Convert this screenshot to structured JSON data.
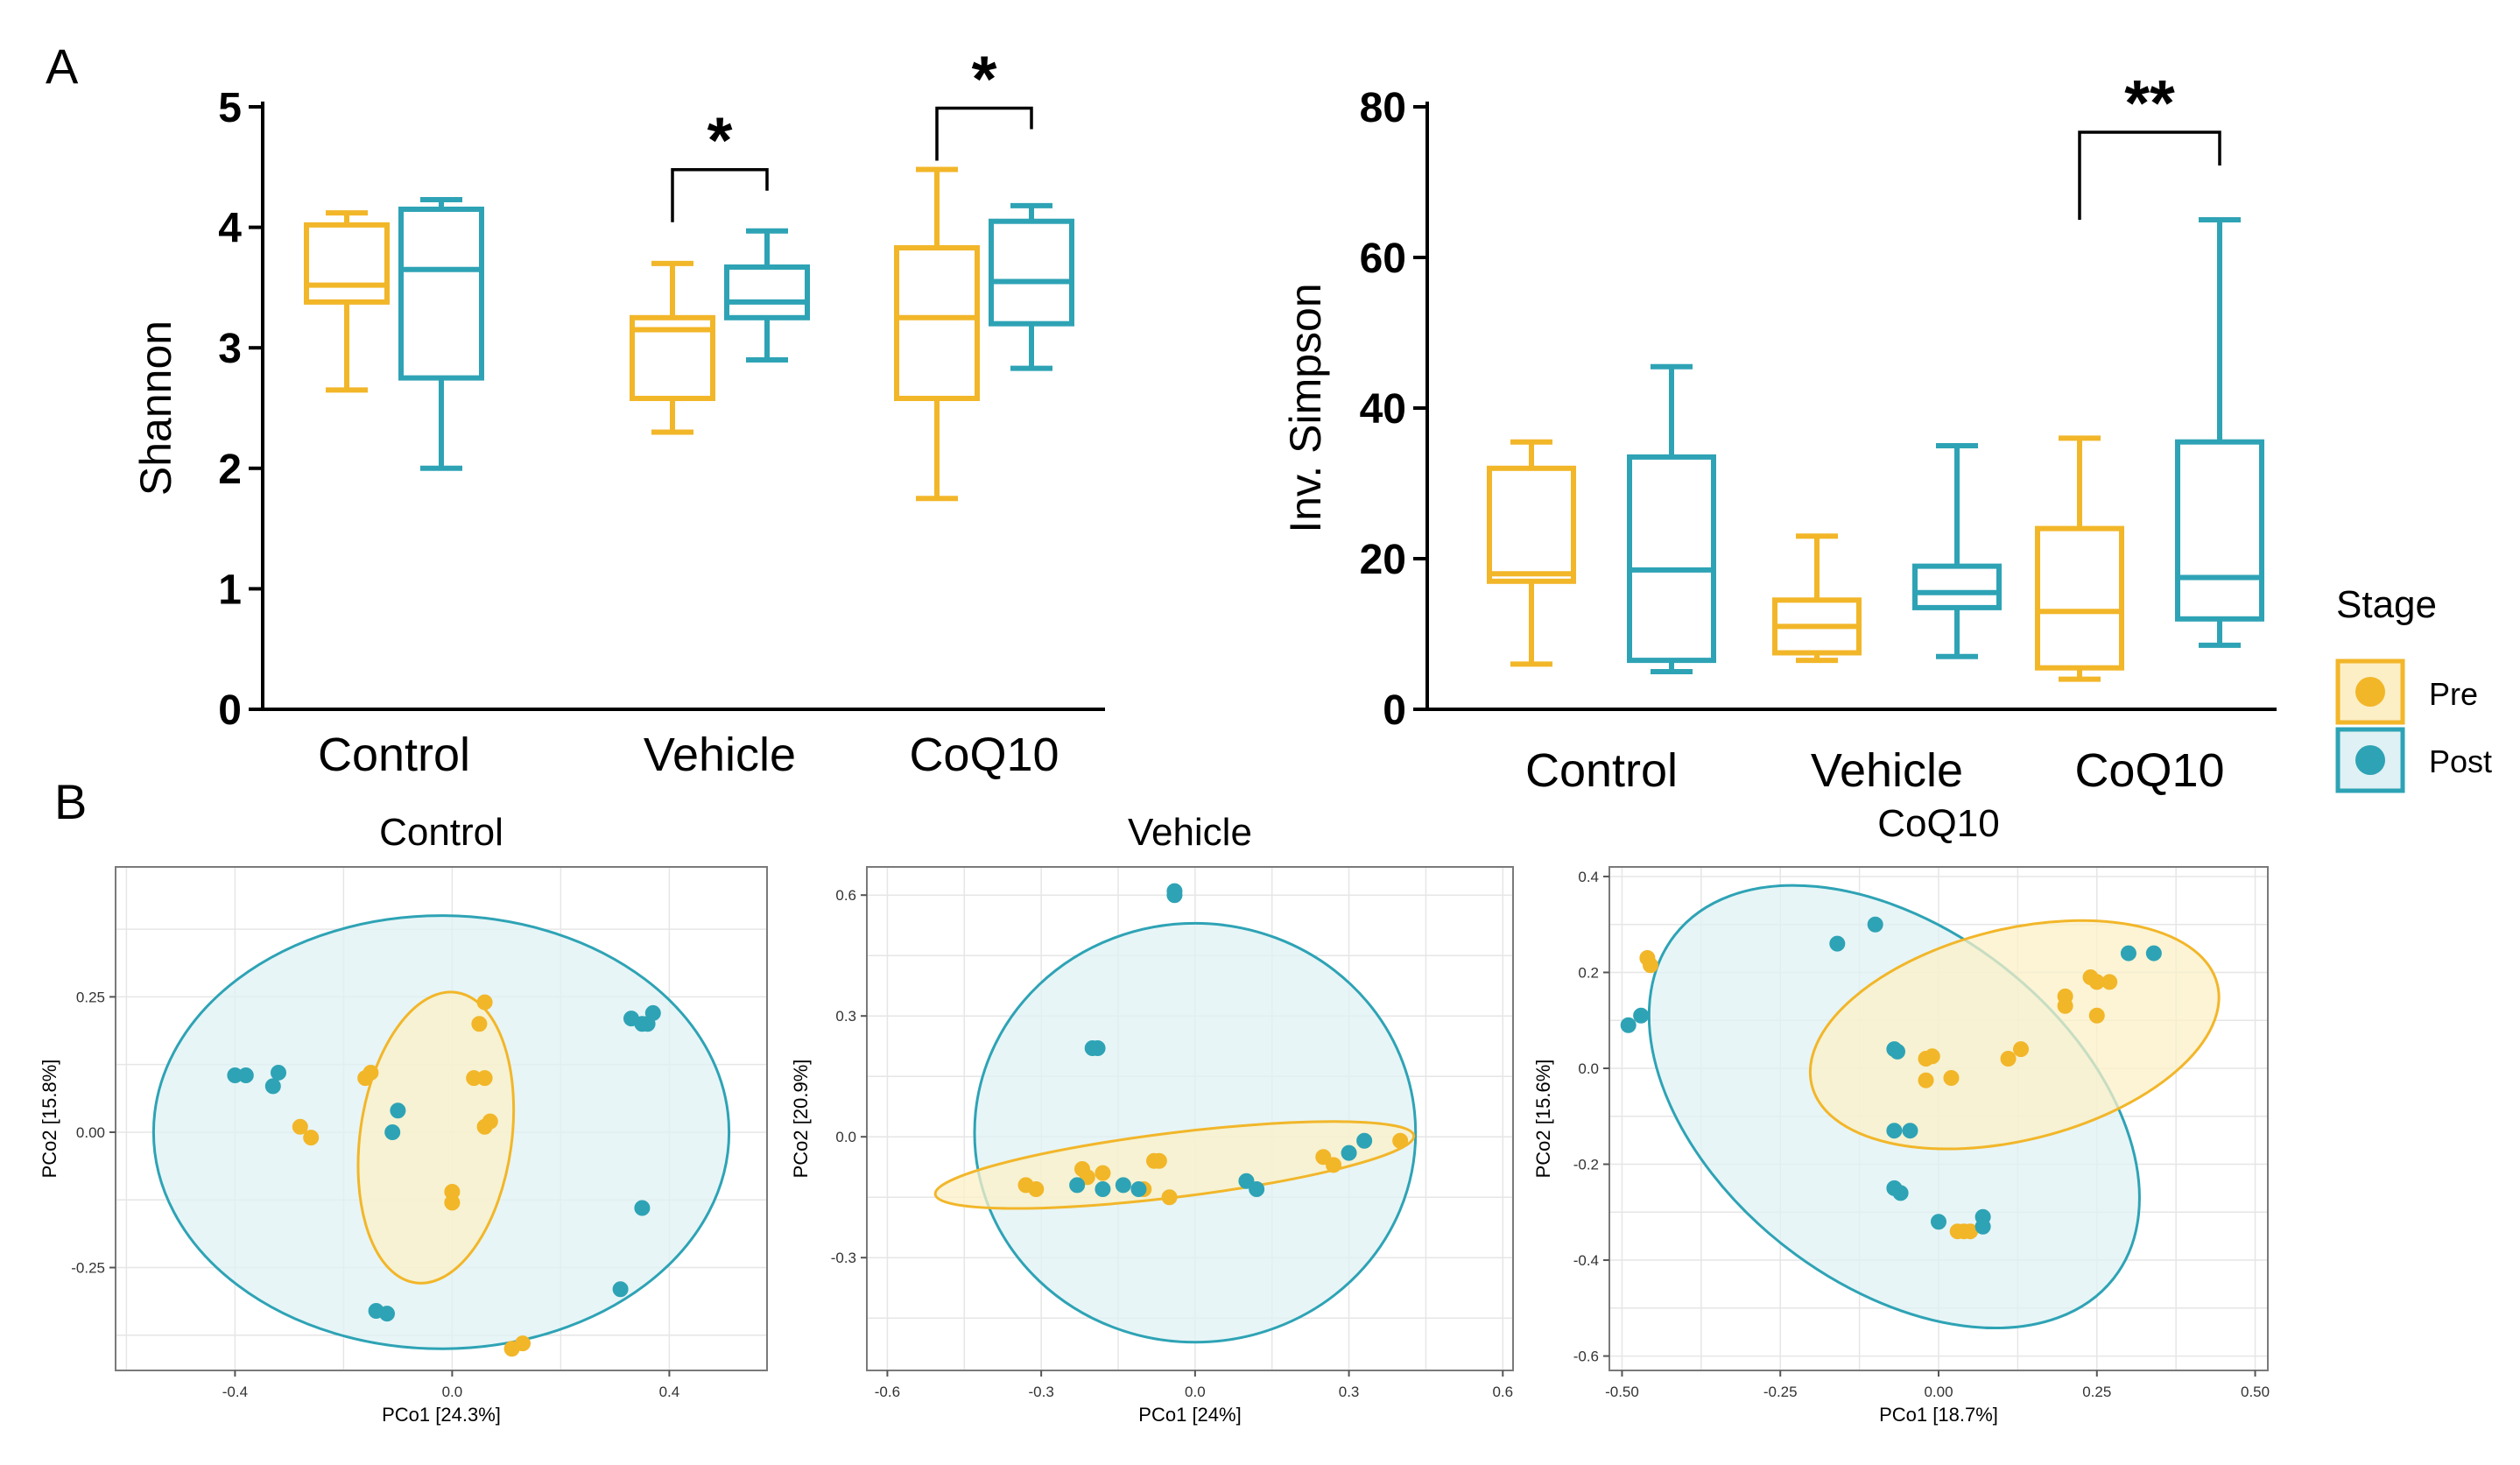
{
  "colors": {
    "pre": "#f2b629",
    "post": "#2ea3b5",
    "pre_fill": "#fbf0c7",
    "post_fill": "#dff1f4",
    "axis": "#000000",
    "grid": "#e6e6e6"
  },
  "panel_labels": {
    "a": "A",
    "b": "B"
  },
  "legend": {
    "title": "Stage",
    "items": [
      "Pre",
      "Post"
    ]
  },
  "chart_data": [
    {
      "type": "box",
      "id": "shannon",
      "panel": "A",
      "ylabel": "Shannon",
      "ylim": [
        0,
        5
      ],
      "yticks": [
        "0",
        "1",
        "2",
        "3",
        "4",
        "5"
      ],
      "categories": [
        "Control",
        "Vehicle",
        "CoQ10"
      ],
      "series": [
        {
          "name": "Pre",
          "boxes": [
            {
              "min": 2.65,
              "q1": 3.38,
              "median": 3.52,
              "q3": 4.02,
              "max": 4.12
            },
            {
              "min": 2.3,
              "q1": 2.58,
              "median": 3.15,
              "q3": 3.25,
              "max": 3.7
            },
            {
              "min": 1.75,
              "q1": 2.58,
              "median": 3.25,
              "q3": 3.83,
              "max": 4.48
            }
          ]
        },
        {
          "name": "Post",
          "boxes": [
            {
              "min": 2.0,
              "q1": 2.75,
              "median": 3.65,
              "q3": 4.15,
              "max": 4.23
            },
            {
              "min": 2.9,
              "q1": 3.25,
              "median": 3.38,
              "q3": 3.67,
              "max": 3.97
            },
            {
              "min": 2.83,
              "q1": 3.2,
              "median": 3.55,
              "q3": 4.05,
              "max": 4.18
            }
          ]
        }
      ],
      "significance": [
        {
          "category": "Vehicle",
          "label": "*"
        },
        {
          "category": "CoQ10",
          "label": "*"
        }
      ]
    },
    {
      "type": "box",
      "id": "invsimpson",
      "panel": "A",
      "ylabel": "Inv. Simpson",
      "ylim": [
        0,
        80
      ],
      "yticks": [
        "0",
        "20",
        "40",
        "60",
        "80"
      ],
      "categories": [
        "Control",
        "Vehicle",
        "CoQ10"
      ],
      "series": [
        {
          "name": "Pre",
          "boxes": [
            {
              "min": 6,
              "q1": 17,
              "median": 18,
              "q3": 32,
              "max": 35.5
            },
            {
              "min": 6.5,
              "q1": 7.5,
              "median": 11,
              "q3": 14.5,
              "max": 23
            },
            {
              "min": 4,
              "q1": 5.5,
              "median": 13,
              "q3": 24,
              "max": 36
            }
          ]
        },
        {
          "name": "Post",
          "boxes": [
            {
              "min": 5,
              "q1": 6.5,
              "median": 18.5,
              "q3": 33.5,
              "max": 45.5
            },
            {
              "min": 7,
              "q1": 13.5,
              "median": 15.5,
              "q3": 19,
              "max": 35
            },
            {
              "min": 8.5,
              "q1": 12,
              "median": 17.5,
              "q3": 35.5,
              "max": 65
            }
          ]
        }
      ],
      "significance": [
        {
          "category": "CoQ10",
          "label": "**"
        }
      ]
    },
    {
      "type": "scatter",
      "id": "pcoa-control",
      "panel": "B",
      "title": "Control",
      "xlabel": "PCo1 [24.3%]",
      "ylabel": "PCo2 [15.8%]",
      "xlim": [
        -0.62,
        0.58
      ],
      "ylim": [
        -0.44,
        0.49
      ],
      "xticks": [
        -0.4,
        0.0,
        0.4
      ],
      "xtick_labels": [
        "-0.4",
        "0.0",
        "0.4"
      ],
      "yticks": [
        -0.25,
        0.0,
        0.25
      ],
      "ytick_labels": [
        "-0.25",
        "0.00",
        "0.25"
      ],
      "ellipses": [
        {
          "group": "Post",
          "cx": -0.02,
          "cy": 0.0,
          "rx": 0.53,
          "ry": 0.4,
          "rotation": 0
        },
        {
          "group": "Pre",
          "cx": -0.03,
          "cy": -0.01,
          "rx": 0.27,
          "ry": 0.14,
          "rotation": -82
        }
      ],
      "series": [
        {
          "name": "Pre",
          "points": [
            [
              0.06,
              0.24
            ],
            [
              0.05,
              0.2
            ],
            [
              -0.15,
              0.11
            ],
            [
              -0.16,
              0.1
            ],
            [
              0.04,
              0.1
            ],
            [
              0.06,
              0.1
            ],
            [
              -0.28,
              0.01
            ],
            [
              -0.26,
              -0.01
            ],
            [
              0.06,
              0.01
            ],
            [
              0.07,
              0.02
            ],
            [
              0.0,
              -0.11
            ],
            [
              0.0,
              -0.13
            ],
            [
              0.13,
              -0.39
            ],
            [
              0.11,
              -0.4
            ]
          ]
        },
        {
          "name": "Post",
          "points": [
            [
              -0.4,
              0.105
            ],
            [
              -0.38,
              0.105
            ],
            [
              -0.32,
              0.11
            ],
            [
              -0.33,
              0.085
            ],
            [
              0.33,
              0.21
            ],
            [
              0.35,
              0.2
            ],
            [
              0.37,
              0.22
            ],
            [
              0.36,
              0.2
            ],
            [
              -0.1,
              0.04
            ],
            [
              -0.11,
              0.0
            ],
            [
              0.35,
              -0.14
            ],
            [
              0.31,
              -0.29
            ],
            [
              -0.14,
              -0.33
            ],
            [
              -0.12,
              -0.335
            ]
          ]
        }
      ]
    },
    {
      "type": "scatter",
      "id": "pcoa-vehicle",
      "panel": "B",
      "title": "Vehicle",
      "xlabel": "PCo1 [24%]",
      "ylabel": "PCo2 [20.9%]",
      "xlim": [
        -0.64,
        0.62
      ],
      "ylim": [
        -0.58,
        0.67
      ],
      "xticks": [
        -0.6,
        -0.3,
        0.0,
        0.3,
        0.6
      ],
      "xtick_labels": [
        "-0.6",
        "-0.3",
        "0.0",
        "0.3",
        "0.6"
      ],
      "yticks": [
        -0.3,
        0.0,
        0.3,
        0.6
      ],
      "ytick_labels": [
        "-0.3",
        "0.0",
        "0.3",
        "0.6"
      ],
      "ellipses": [
        {
          "group": "Post",
          "cx": 0.0,
          "cy": 0.01,
          "rx": 0.43,
          "ry": 0.52,
          "rotation": 0
        },
        {
          "group": "Pre",
          "cx": -0.04,
          "cy": -0.07,
          "rx": 0.47,
          "ry": 0.08,
          "rotation": -7
        }
      ],
      "series": [
        {
          "name": "Pre",
          "points": [
            [
              -0.33,
              -0.12
            ],
            [
              -0.31,
              -0.13
            ],
            [
              -0.22,
              -0.08
            ],
            [
              -0.21,
              -0.1
            ],
            [
              -0.18,
              -0.09
            ],
            [
              -0.08,
              -0.06
            ],
            [
              -0.07,
              -0.06
            ],
            [
              -0.1,
              -0.13
            ],
            [
              -0.05,
              -0.15
            ],
            [
              0.25,
              -0.05
            ],
            [
              0.27,
              -0.07
            ],
            [
              0.4,
              -0.01
            ]
          ]
        },
        {
          "name": "Post",
          "points": [
            [
              -0.04,
              0.61
            ],
            [
              -0.04,
              0.6
            ],
            [
              -0.2,
              0.22
            ],
            [
              -0.19,
              0.22
            ],
            [
              -0.23,
              -0.12
            ],
            [
              -0.18,
              -0.13
            ],
            [
              -0.14,
              -0.12
            ],
            [
              -0.11,
              -0.13
            ],
            [
              0.1,
              -0.11
            ],
            [
              0.12,
              -0.13
            ],
            [
              0.3,
              -0.04
            ],
            [
              0.33,
              -0.01
            ]
          ]
        }
      ]
    },
    {
      "type": "scatter",
      "id": "pcoa-coq10",
      "panel": "B",
      "title": "CoQ10",
      "xlabel": "PCo1 [18.7%]",
      "ylabel": "PCo2 [15.6%]",
      "xlim": [
        -0.52,
        0.52
      ],
      "ylim": [
        -0.63,
        0.42
      ],
      "xticks": [
        -0.5,
        -0.25,
        0.0,
        0.25,
        0.5
      ],
      "xtick_labels": [
        "-0.50",
        "-0.25",
        "0.00",
        "0.25",
        "0.50"
      ],
      "yticks": [
        -0.6,
        -0.4,
        -0.2,
        0.0,
        0.2,
        0.4
      ],
      "ytick_labels": [
        "-0.6",
        "-0.4",
        "-0.2",
        "0.0",
        "0.2",
        "0.4"
      ],
      "ellipses": [
        {
          "group": "Post",
          "cx": -0.07,
          "cy": -0.08,
          "rx": 0.44,
          "ry": 0.37,
          "rotation": 38
        },
        {
          "group": "Pre",
          "cx": 0.12,
          "cy": 0.07,
          "rx": 0.33,
          "ry": 0.22,
          "rotation": -14
        }
      ],
      "series": [
        {
          "name": "Pre",
          "points": [
            [
              -0.46,
              0.23
            ],
            [
              -0.455,
              0.215
            ],
            [
              -0.02,
              0.02
            ],
            [
              -0.01,
              0.025
            ],
            [
              -0.02,
              -0.025
            ],
            [
              0.02,
              -0.02
            ],
            [
              0.11,
              0.02
            ],
            [
              0.13,
              0.04
            ],
            [
              0.2,
              0.13
            ],
            [
              0.2,
              0.15
            ],
            [
              0.24,
              0.19
            ],
            [
              0.25,
              0.18
            ],
            [
              0.27,
              0.18
            ],
            [
              0.25,
              0.11
            ],
            [
              0.03,
              -0.34
            ],
            [
              0.04,
              -0.34
            ],
            [
              0.05,
              -0.34
            ]
          ]
        },
        {
          "name": "Post",
          "points": [
            [
              -0.49,
              0.09
            ],
            [
              -0.47,
              0.11
            ],
            [
              -0.16,
              0.26
            ],
            [
              -0.1,
              0.3
            ],
            [
              -0.07,
              0.04
            ],
            [
              -0.065,
              0.035
            ],
            [
              -0.07,
              -0.13
            ],
            [
              -0.045,
              -0.13
            ],
            [
              -0.07,
              -0.25
            ],
            [
              -0.06,
              -0.26
            ],
            [
              0.0,
              -0.32
            ],
            [
              0.07,
              -0.31
            ],
            [
              0.07,
              -0.33
            ],
            [
              0.3,
              0.24
            ],
            [
              0.34,
              0.24
            ]
          ]
        }
      ]
    }
  ]
}
